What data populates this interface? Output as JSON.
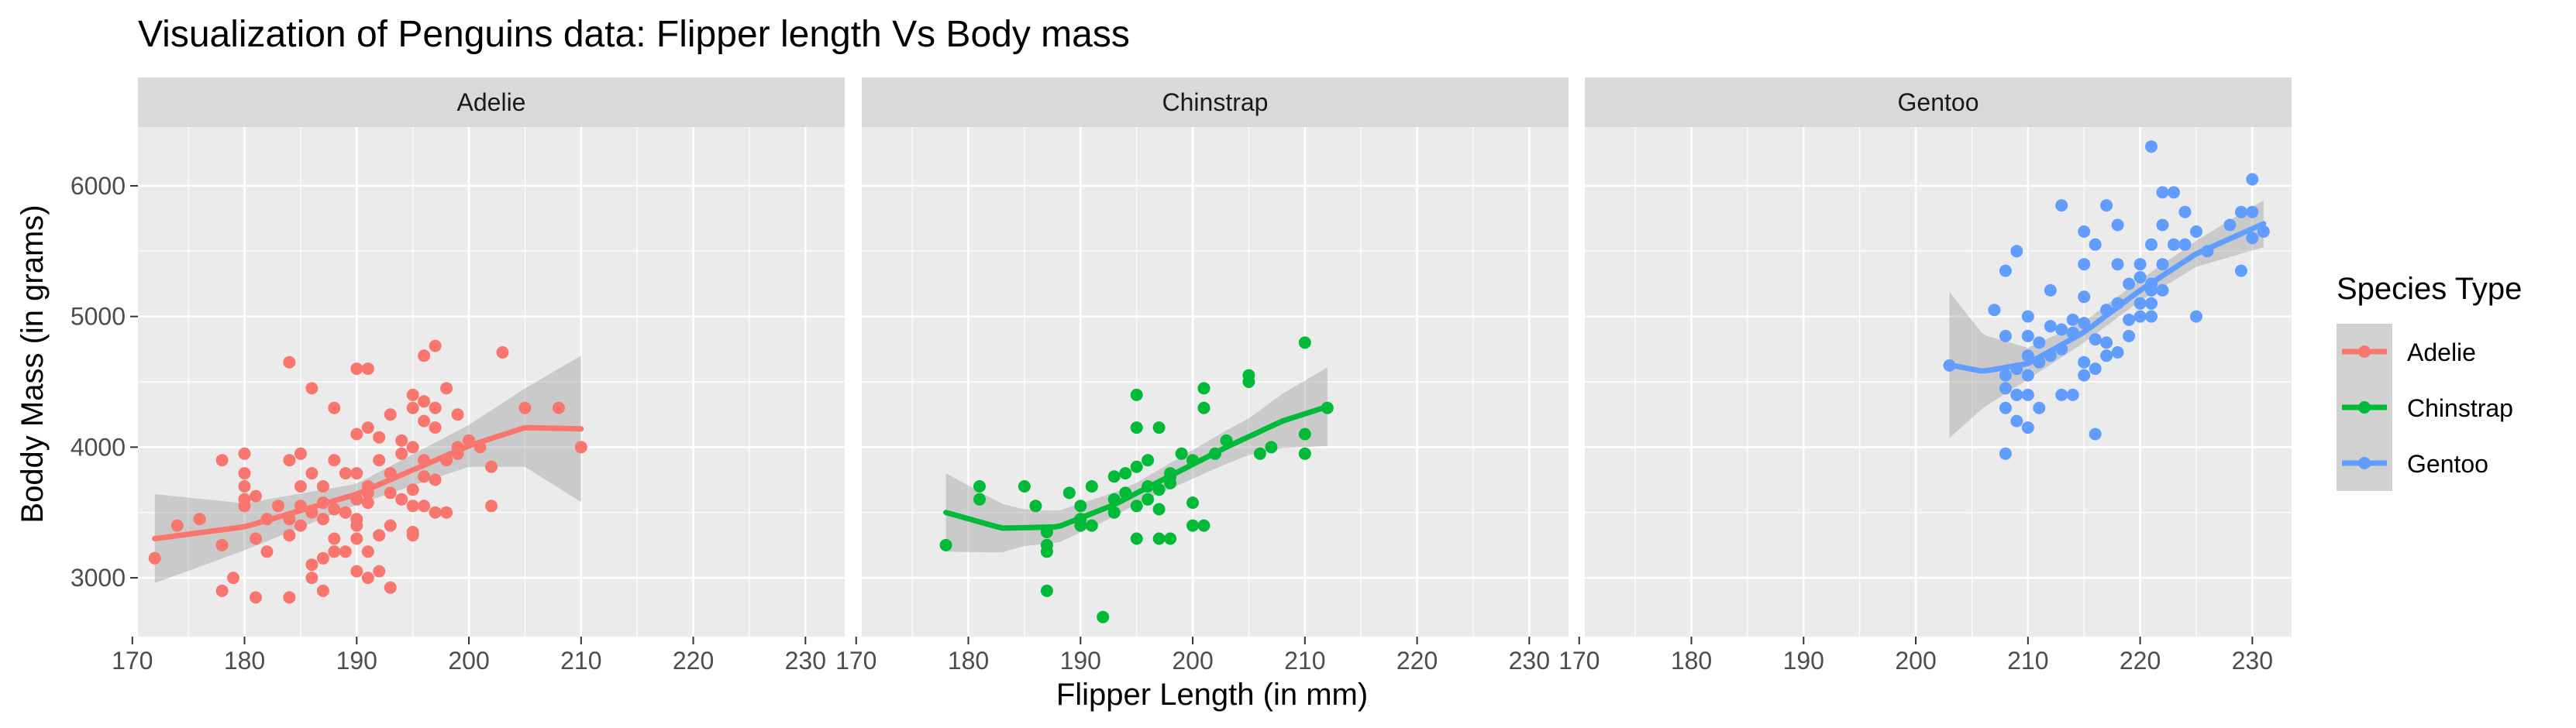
{
  "chart_data": {
    "type": "scatter",
    "title": "Visualization of Penguins data: Flipper length Vs Body mass",
    "xlabel": "Flipper Length (in mm)",
    "ylabel": "Boddy Mass (in grams)",
    "xlim": [
      170.5,
      233.5
    ],
    "ylim": [
      2550,
      6450
    ],
    "x_ticks": [
      170,
      180,
      190,
      200,
      210,
      220,
      230
    ],
    "y_ticks": [
      3000,
      4000,
      5000,
      6000
    ],
    "grid": true,
    "facets": [
      "Adelie",
      "Chinstrap",
      "Gentoo"
    ],
    "legend": {
      "title": "Species Type",
      "position": "right",
      "entries": [
        "Adelie",
        "Chinstrap",
        "Gentoo"
      ]
    },
    "colors": {
      "Adelie": "#F8766D",
      "Chinstrap": "#00BA38",
      "Gentoo": "#619CFF",
      "ribbon": "#999999",
      "panel_bg": "#EBEBEB",
      "strip_bg": "#D9D9D9",
      "grid": "#FFFFFF"
    },
    "series": [
      {
        "name": "Adelie",
        "points": [
          [
            172,
            3150
          ],
          [
            174,
            3400
          ],
          [
            176,
            3450
          ],
          [
            178,
            3250
          ],
          [
            178,
            2900
          ],
          [
            178,
            3900
          ],
          [
            179,
            3000
          ],
          [
            180,
            3550
          ],
          [
            180,
            3600
          ],
          [
            180,
            3700
          ],
          [
            180,
            3800
          ],
          [
            180,
            3950
          ],
          [
            181,
            2850
          ],
          [
            181,
            3300
          ],
          [
            181,
            3625
          ],
          [
            182,
            3450
          ],
          [
            182,
            3200
          ],
          [
            183,
            3550
          ],
          [
            184,
            3450
          ],
          [
            184,
            3900
          ],
          [
            184,
            3325
          ],
          [
            184,
            4650
          ],
          [
            184,
            2850
          ],
          [
            185,
            3550
          ],
          [
            185,
            3400
          ],
          [
            185,
            3950
          ],
          [
            185,
            3700
          ],
          [
            186,
            3500
          ],
          [
            186,
            3800
          ],
          [
            186,
            3100
          ],
          [
            186,
            4450
          ],
          [
            186,
            3000
          ],
          [
            187,
            3450
          ],
          [
            187,
            3150
          ],
          [
            187,
            3700
          ],
          [
            187,
            2900
          ],
          [
            187,
            3575
          ],
          [
            188,
            3300
          ],
          [
            188,
            3900
          ],
          [
            188,
            3200
          ],
          [
            188,
            4300
          ],
          [
            188,
            3525
          ],
          [
            189,
            3800
          ],
          [
            189,
            3200
          ],
          [
            189,
            3500
          ],
          [
            190,
            3600
          ],
          [
            190,
            3800
          ],
          [
            190,
            4100
          ],
          [
            190,
            3300
          ],
          [
            190,
            3050
          ],
          [
            190,
            4600
          ],
          [
            190,
            3450
          ],
          [
            190,
            3400
          ],
          [
            191,
            3700
          ],
          [
            191,
            4150
          ],
          [
            191,
            3650
          ],
          [
            191,
            3000
          ],
          [
            191,
            4600
          ],
          [
            191,
            3575
          ],
          [
            191,
            3200
          ],
          [
            192,
            3900
          ],
          [
            192,
            3325
          ],
          [
            192,
            4075
          ],
          [
            192,
            3050
          ],
          [
            193,
            3650
          ],
          [
            193,
            3800
          ],
          [
            193,
            2925
          ],
          [
            193,
            4250
          ],
          [
            193,
            3400
          ],
          [
            194,
            3950
          ],
          [
            194,
            4050
          ],
          [
            194,
            3600
          ],
          [
            195,
            4000
          ],
          [
            195,
            3325
          ],
          [
            195,
            4400
          ],
          [
            195,
            3350
          ],
          [
            195,
            4300
          ],
          [
            195,
            3550
          ],
          [
            195,
            3675
          ],
          [
            196,
            4350
          ],
          [
            196,
            3550
          ],
          [
            196,
            4700
          ],
          [
            196,
            3900
          ],
          [
            196,
            4200
          ],
          [
            196,
            3775
          ],
          [
            197,
            4300
          ],
          [
            197,
            4150
          ],
          [
            197,
            4775
          ],
          [
            197,
            3500
          ],
          [
            197,
            3750
          ],
          [
            198,
            3500
          ],
          [
            198,
            4450
          ],
          [
            198,
            3900
          ],
          [
            199,
            4000
          ],
          [
            199,
            4250
          ],
          [
            199,
            3950
          ],
          [
            200,
            4050
          ],
          [
            201,
            4000
          ],
          [
            202,
            3550
          ],
          [
            202,
            3850
          ],
          [
            203,
            4725
          ],
          [
            205,
            4300
          ],
          [
            208,
            4300
          ],
          [
            210,
            4000
          ]
        ],
        "trend": [
          [
            172,
            3300
          ],
          [
            180,
            3390
          ],
          [
            190,
            3640
          ],
          [
            200,
            4010
          ],
          [
            205,
            4150
          ],
          [
            210,
            4140
          ]
        ],
        "ribbon_halfwidth": [
          [
            172,
            340
          ],
          [
            180,
            180
          ],
          [
            190,
            80
          ],
          [
            200,
            160
          ],
          [
            205,
            300
          ],
          [
            210,
            560
          ]
        ]
      },
      {
        "name": "Chinstrap",
        "points": [
          [
            178,
            3250
          ],
          [
            181,
            3600
          ],
          [
            181,
            3700
          ],
          [
            185,
            3700
          ],
          [
            186,
            3550
          ],
          [
            187,
            3350
          ],
          [
            187,
            3250
          ],
          [
            187,
            2900
          ],
          [
            187,
            3200
          ],
          [
            189,
            3650
          ],
          [
            190,
            3400
          ],
          [
            190,
            3550
          ],
          [
            190,
            3450
          ],
          [
            191,
            3700
          ],
          [
            191,
            3400
          ],
          [
            192,
            2700
          ],
          [
            193,
            3600
          ],
          [
            193,
            3500
          ],
          [
            193,
            3775
          ],
          [
            194,
            3650
          ],
          [
            194,
            3800
          ],
          [
            195,
            3550
          ],
          [
            195,
            3300
          ],
          [
            195,
            4150
          ],
          [
            195,
            4400
          ],
          [
            195,
            3850
          ],
          [
            196,
            3700
          ],
          [
            196,
            3600
          ],
          [
            196,
            3900
          ],
          [
            197,
            3675
          ],
          [
            197,
            3300
          ],
          [
            197,
            4150
          ],
          [
            197,
            3525
          ],
          [
            198,
            3725
          ],
          [
            198,
            3775
          ],
          [
            198,
            3300
          ],
          [
            198,
            3800
          ],
          [
            199,
            3950
          ],
          [
            200,
            3575
          ],
          [
            200,
            3900
          ],
          [
            200,
            3400
          ],
          [
            201,
            4450
          ],
          [
            201,
            3400
          ],
          [
            201,
            4300
          ],
          [
            202,
            3950
          ],
          [
            203,
            4050
          ],
          [
            205,
            4550
          ],
          [
            205,
            4500
          ],
          [
            206,
            3950
          ],
          [
            207,
            4000
          ],
          [
            210,
            4800
          ],
          [
            210,
            3950
          ],
          [
            210,
            4100
          ],
          [
            212,
            4300
          ]
        ],
        "trend": [
          [
            178,
            3500
          ],
          [
            183,
            3380
          ],
          [
            188,
            3390
          ],
          [
            193,
            3560
          ],
          [
            198,
            3780
          ],
          [
            203,
            4000
          ],
          [
            208,
            4200
          ],
          [
            212,
            4310
          ]
        ],
        "ribbon_halfwidth": [
          [
            178,
            300
          ],
          [
            185,
            140
          ],
          [
            195,
            80
          ],
          [
            205,
            140
          ],
          [
            212,
            300
          ]
        ]
      },
      {
        "name": "Gentoo",
        "points": [
          [
            203,
            4625
          ],
          [
            207,
            5050
          ],
          [
            208,
            4450
          ],
          [
            208,
            4300
          ],
          [
            208,
            3950
          ],
          [
            208,
            4550
          ],
          [
            208,
            4850
          ],
          [
            208,
            5350
          ],
          [
            209,
            4200
          ],
          [
            209,
            4400
          ],
          [
            209,
            4600
          ],
          [
            209,
            5500
          ],
          [
            210,
            4150
          ],
          [
            210,
            4400
          ],
          [
            210,
            4700
          ],
          [
            210,
            4850
          ],
          [
            210,
            5000
          ],
          [
            210,
            4550
          ],
          [
            211,
            4300
          ],
          [
            211,
            4650
          ],
          [
            211,
            4800
          ],
          [
            212,
            4925
          ],
          [
            212,
            4700
          ],
          [
            212,
            5200
          ],
          [
            213,
            4400
          ],
          [
            213,
            4900
          ],
          [
            213,
            4750
          ],
          [
            213,
            5850
          ],
          [
            214,
            4400
          ],
          [
            214,
            4875
          ],
          [
            214,
            4975
          ],
          [
            215,
            4550
          ],
          [
            215,
            4650
          ],
          [
            215,
            5150
          ],
          [
            215,
            5400
          ],
          [
            215,
            5650
          ],
          [
            215,
            4950
          ],
          [
            216,
            4600
          ],
          [
            216,
            4100
          ],
          [
            216,
            5550
          ],
          [
            216,
            4825
          ],
          [
            217,
            4800
          ],
          [
            217,
            4700
          ],
          [
            217,
            5050
          ],
          [
            217,
            5850
          ],
          [
            218,
            5700
          ],
          [
            218,
            5100
          ],
          [
            218,
            4725
          ],
          [
            218,
            5400
          ],
          [
            219,
            4850
          ],
          [
            219,
            5250
          ],
          [
            219,
            4975
          ],
          [
            220,
            5000
          ],
          [
            220,
            5400
          ],
          [
            220,
            5100
          ],
          [
            220,
            5300
          ],
          [
            221,
            5000
          ],
          [
            221,
            5250
          ],
          [
            221,
            5550
          ],
          [
            221,
            5200
          ],
          [
            221,
            6300
          ],
          [
            221,
            5100
          ],
          [
            222,
            5950
          ],
          [
            222,
            5700
          ],
          [
            222,
            5200
          ],
          [
            222,
            5400
          ],
          [
            223,
            5550
          ],
          [
            223,
            5950
          ],
          [
            224,
            5550
          ],
          [
            224,
            5800
          ],
          [
            225,
            5000
          ],
          [
            225,
            5650
          ],
          [
            226,
            5500
          ],
          [
            228,
            5700
          ],
          [
            229,
            5350
          ],
          [
            229,
            5800
          ],
          [
            230,
            5600
          ],
          [
            230,
            6050
          ],
          [
            230,
            5800
          ],
          [
            231,
            5650
          ]
        ],
        "trend": [
          [
            203,
            4630
          ],
          [
            206,
            4580
          ],
          [
            210,
            4640
          ],
          [
            215,
            4880
          ],
          [
            220,
            5200
          ],
          [
            225,
            5480
          ],
          [
            231,
            5710
          ]
        ],
        "ribbon_halfwidth": [
          [
            203,
            560
          ],
          [
            206,
            280
          ],
          [
            210,
            120
          ],
          [
            215,
            80
          ],
          [
            220,
            80
          ],
          [
            225,
            100
          ],
          [
            231,
            180
          ]
        ]
      }
    ]
  }
}
